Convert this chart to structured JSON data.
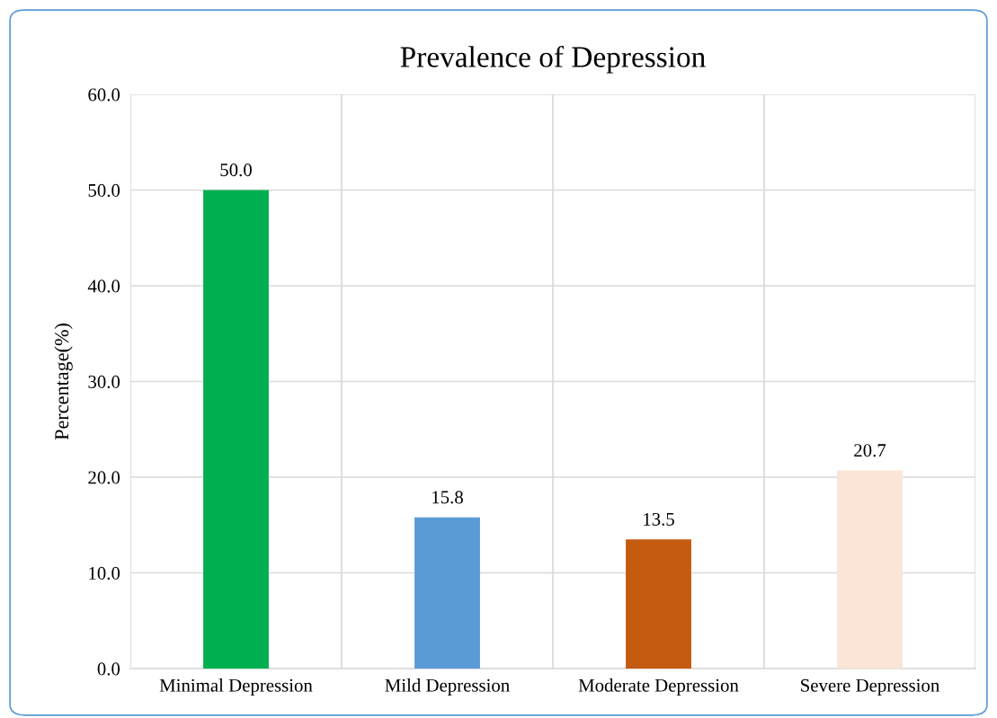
{
  "chart_data": {
    "type": "bar",
    "title": "Prevalence of Depression",
    "ylabel": "Percentage(%)",
    "categories": [
      "Minimal Depression",
      "Mild Depression",
      "Moderate Depression",
      "Severe Depression"
    ],
    "values": [
      50.0,
      15.8,
      13.5,
      20.7
    ],
    "colors": [
      "#00b050",
      "#5b9bd5",
      "#c55a11",
      "#fbe5d6"
    ],
    "ylim": [
      0,
      60
    ],
    "yticks": [
      {
        "value": 0,
        "label": "0.0"
      },
      {
        "value": 10,
        "label": "10.0"
      },
      {
        "value": 20,
        "label": "20.0"
      },
      {
        "value": 30,
        "label": "30.0"
      },
      {
        "value": 40,
        "label": "40.0"
      },
      {
        "value": 50,
        "label": "50.0"
      },
      {
        "value": 60,
        "label": "60.0"
      }
    ],
    "value_labels": [
      "50.0",
      "15.8",
      "13.5",
      "20.7"
    ],
    "grid": true,
    "legend": false
  }
}
